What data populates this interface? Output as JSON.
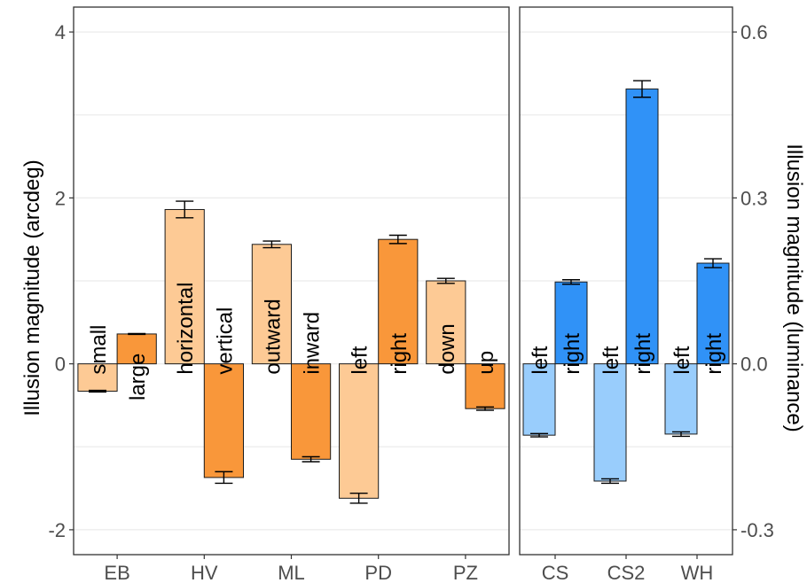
{
  "chart_data": [
    {
      "type": "bar",
      "ylabel": "Illusion magnitude (arcdeg)",
      "ylim": [
        -2.3,
        4.3
      ],
      "yticks": [
        -2,
        0,
        2,
        4
      ],
      "ytick_labels": [
        "-2",
        "0",
        "2",
        "4"
      ],
      "grid": true,
      "categories": [
        "EB",
        "HV",
        "ML",
        "PD",
        "PZ"
      ],
      "colors": {
        "light": "#fdca95",
        "dark": "#f9973a"
      },
      "series": [
        {
          "values": [
            -0.33,
            1.86,
            1.44,
            -1.62,
            1.0
          ],
          "errors": [
            0.01,
            0.1,
            0.04,
            0.06,
            0.03
          ],
          "labels": [
            "small",
            "horizontal",
            "outward",
            "left",
            "down"
          ]
        },
        {
          "values": [
            0.36,
            -1.37,
            -1.15,
            1.5,
            -0.54
          ],
          "errors": [
            0.005,
            0.07,
            0.03,
            0.05,
            0.02
          ],
          "labels": [
            "large",
            "vertical",
            "inward",
            "right",
            "up"
          ]
        }
      ]
    },
    {
      "type": "bar",
      "ylabel": "Illusion magnitude (luminance)",
      "ylim": [
        -0.345,
        0.645
      ],
      "yticks": [
        -0.3,
        0.0,
        0.3,
        0.6
      ],
      "ytick_labels": [
        "-0.3",
        "0.0",
        "0.3",
        "0.6"
      ],
      "grid": true,
      "categories": [
        "CS",
        "CS2",
        "WH"
      ],
      "colors": {
        "light": "#99cdfc",
        "dark": "#3092f7"
      },
      "series": [
        {
          "values": [
            -0.129,
            -0.212,
            -0.127
          ],
          "errors": [
            0.003,
            0.004,
            0.004
          ],
          "labels": [
            "left",
            "left",
            "left"
          ]
        },
        {
          "values": [
            0.148,
            0.497,
            0.182
          ],
          "errors": [
            0.004,
            0.015,
            0.008
          ],
          "labels": [
            "right",
            "right",
            "right"
          ]
        }
      ]
    }
  ]
}
